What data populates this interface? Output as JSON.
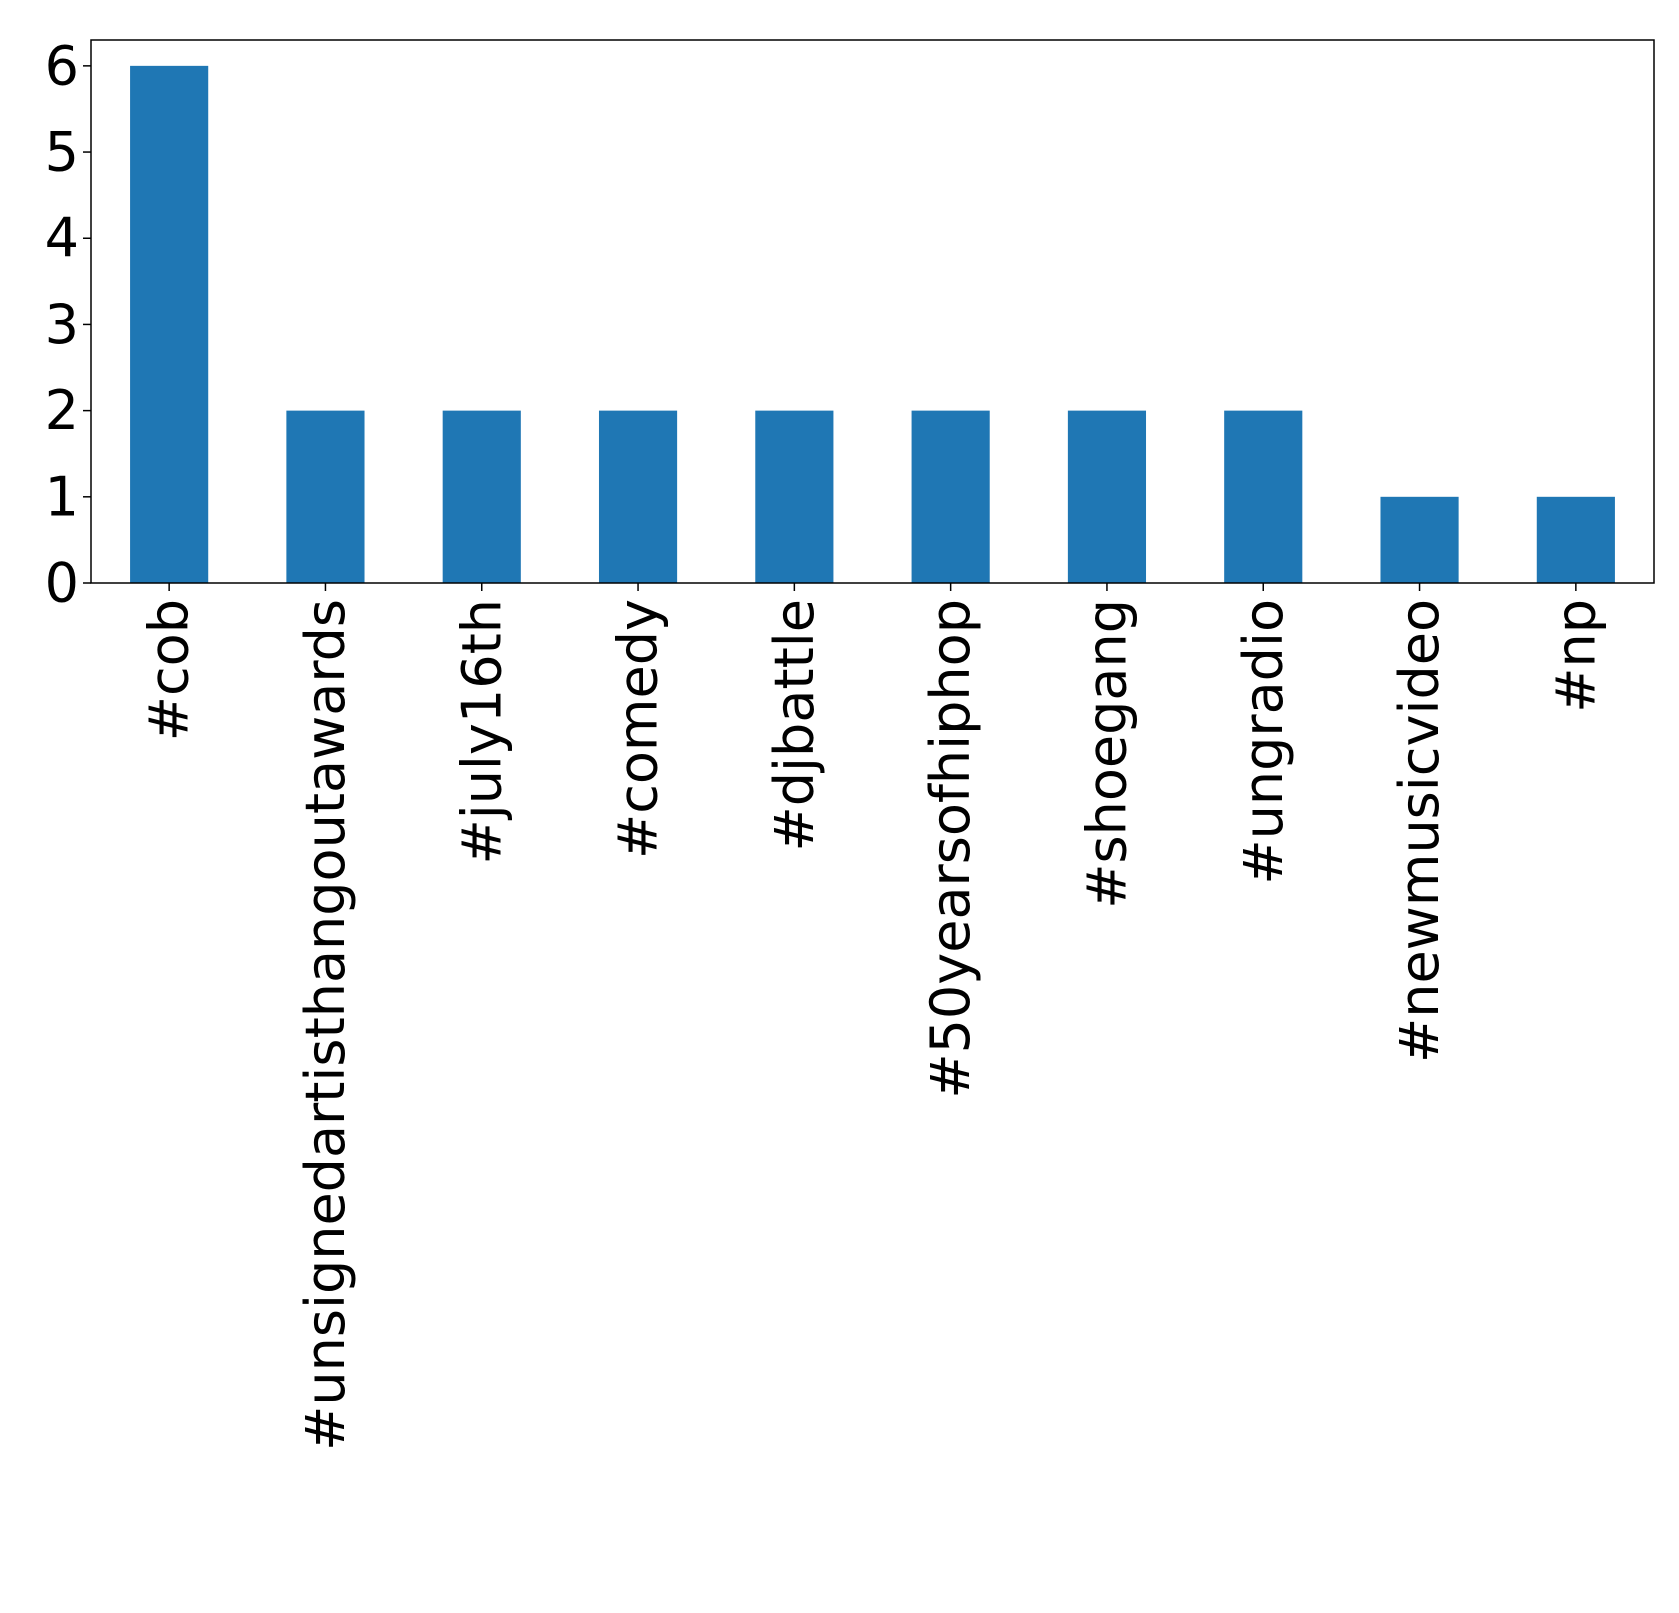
{
  "chart_data": {
    "type": "bar",
    "title": "",
    "xlabel": "",
    "ylabel": "",
    "categories": [
      "#cob",
      "#unsignedartisthangoutawards",
      "#july16th",
      "#comedy",
      "#djbattle",
      "#50yearsofhiphop",
      "#shoegang",
      "#ungradio",
      "#newmusicvideo",
      "#np"
    ],
    "values": [
      6,
      2,
      2,
      2,
      2,
      2,
      2,
      2,
      1,
      1
    ],
    "ylim": [
      0,
      6.3
    ],
    "yticks": [
      0,
      1,
      2,
      3,
      4,
      5,
      6
    ],
    "bar_color": "#1f77b4",
    "grid": false,
    "legend": "none"
  }
}
